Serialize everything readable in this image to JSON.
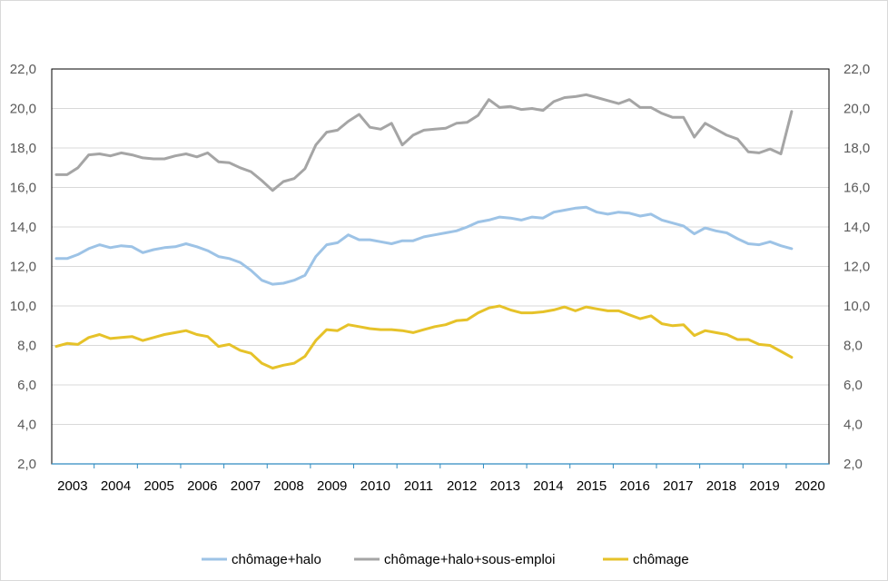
{
  "chart_data": {
    "type": "line",
    "title": "",
    "xlabel": "",
    "ylabel": "",
    "ylim": [
      2.0,
      22.0
    ],
    "yticks": [
      "2,0",
      "4,0",
      "6,0",
      "8,0",
      "10,0",
      "12,0",
      "14,0",
      "16,0",
      "18,0",
      "20,0",
      "22,0"
    ],
    "y_axis_left_and_right": true,
    "xticks": [
      "2003",
      "2004",
      "2005",
      "2006",
      "2007",
      "2008",
      "2009",
      "2010",
      "2011",
      "2012",
      "2013",
      "2014",
      "2015",
      "2016",
      "2017",
      "2018",
      "2019",
      "2020"
    ],
    "grid": "horizontal",
    "legend_position": "bottom",
    "x_start": "2003T1",
    "x_end": "2020T2",
    "series": [
      {
        "name": "chômage+halo",
        "color": "#9dc3e6",
        "values": [
          12.4,
          12.4,
          12.6,
          12.9,
          13.1,
          12.95,
          13.05,
          13.0,
          12.7,
          12.85,
          12.95,
          13.0,
          13.15,
          13.0,
          12.8,
          12.5,
          12.4,
          12.2,
          11.8,
          11.3,
          11.1,
          11.15,
          11.3,
          11.55,
          12.5,
          13.1,
          13.2,
          13.6,
          13.35,
          13.35,
          13.25,
          13.15,
          13.3,
          13.3,
          13.5,
          13.6,
          13.7,
          13.8,
          14.0,
          14.25,
          14.35,
          14.5,
          14.45,
          14.35,
          14.5,
          14.45,
          14.75,
          14.85,
          14.95,
          15.0,
          14.75,
          14.65,
          14.75,
          14.7,
          14.55,
          14.65,
          14.35,
          14.2,
          14.05,
          13.65,
          13.95,
          13.8,
          13.7,
          13.4,
          13.15,
          13.1,
          13.25,
          13.05,
          12.9
        ]
      },
      {
        "name": "chômage+halo+sous-emploi",
        "color": "#a5a5a5",
        "values": [
          16.65,
          16.65,
          17.0,
          17.65,
          17.7,
          17.6,
          17.75,
          17.65,
          17.5,
          17.45,
          17.45,
          17.6,
          17.7,
          17.55,
          17.75,
          17.3,
          17.25,
          17.0,
          16.8,
          16.35,
          15.85,
          16.3,
          16.45,
          16.95,
          18.15,
          18.8,
          18.9,
          19.35,
          19.7,
          19.05,
          18.95,
          19.25,
          18.15,
          18.65,
          18.9,
          18.95,
          19.0,
          19.25,
          19.3,
          19.65,
          20.45,
          20.05,
          20.1,
          19.95,
          20.0,
          19.9,
          20.35,
          20.55,
          20.6,
          20.7,
          20.55,
          20.4,
          20.25,
          20.45,
          20.05,
          20.05,
          19.75,
          19.55,
          19.55,
          18.55,
          19.25,
          18.95,
          18.65,
          18.45,
          17.8,
          17.75,
          17.95,
          17.7,
          19.85
        ]
      },
      {
        "name": "chômage",
        "color": "#e6c229",
        "values": [
          7.95,
          8.1,
          8.05,
          8.4,
          8.55,
          8.35,
          8.4,
          8.45,
          8.25,
          8.4,
          8.55,
          8.65,
          8.75,
          8.55,
          8.45,
          7.95,
          8.05,
          7.75,
          7.6,
          7.1,
          6.85,
          7.0,
          7.1,
          7.45,
          8.25,
          8.8,
          8.75,
          9.05,
          8.95,
          8.85,
          8.8,
          8.8,
          8.75,
          8.65,
          8.8,
          8.95,
          9.05,
          9.25,
          9.3,
          9.65,
          9.9,
          10.0,
          9.8,
          9.65,
          9.65,
          9.7,
          9.8,
          9.95,
          9.75,
          9.95,
          9.85,
          9.75,
          9.75,
          9.55,
          9.35,
          9.5,
          9.1,
          9.0,
          9.05,
          8.5,
          8.75,
          8.65,
          8.55,
          8.3,
          8.3,
          8.05,
          8.0,
          7.7,
          7.4
        ]
      }
    ]
  }
}
